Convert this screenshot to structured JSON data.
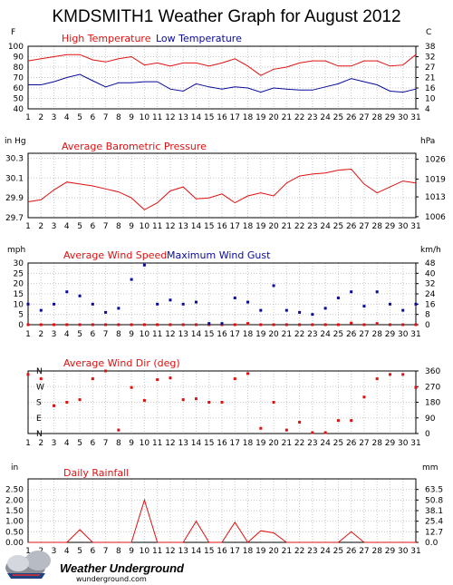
{
  "title": "KMDSMITH1 Weather Graph for August 2012",
  "logo": {
    "name": "Weather Underground",
    "url": "wunderground.com"
  },
  "colors": {
    "red": "#e01010",
    "blue": "#0a0a9a",
    "grid": "#c8c8c8"
  },
  "chart_data": [
    {
      "type": "line",
      "title": "",
      "legend": [
        "High Temperature",
        "Low Temperature"
      ],
      "left_unit": "F",
      "right_unit": "C",
      "ylim": [
        40,
        100
      ],
      "yticks": [
        40,
        50,
        60,
        70,
        80,
        90,
        100
      ],
      "right_ticks": [
        "4",
        "10",
        "16",
        "21",
        "27",
        "32",
        "38"
      ],
      "x": [
        1,
        2,
        3,
        4,
        5,
        6,
        7,
        8,
        9,
        10,
        11,
        12,
        13,
        14,
        15,
        16,
        17,
        18,
        19,
        20,
        21,
        22,
        23,
        24,
        25,
        26,
        27,
        28,
        29,
        30,
        31
      ],
      "series": [
        {
          "name": "High Temperature",
          "color": "red",
          "values": [
            86,
            88,
            90,
            92,
            92,
            87,
            85,
            88,
            90,
            82,
            84,
            81,
            84,
            84,
            81,
            84,
            88,
            81,
            72,
            78,
            80,
            84,
            86,
            86,
            81,
            81,
            86,
            86,
            81,
            82,
            92
          ]
        },
        {
          "name": "Low Temperature",
          "color": "blue",
          "values": [
            63,
            63,
            66,
            70,
            73,
            67,
            61,
            65,
            65,
            66,
            66,
            59,
            57,
            64,
            61,
            59,
            61,
            60,
            56,
            60,
            59,
            58,
            58,
            61,
            64,
            69,
            66,
            63,
            57,
            56,
            59
          ]
        }
      ]
    },
    {
      "type": "line",
      "title": "Average Barometric Pressure",
      "legend": [],
      "left_unit": "in Hg",
      "right_unit": "hPa",
      "ylim": [
        29.7,
        30.35
      ],
      "yticks": [
        29.7,
        29.9,
        30.1,
        30.3
      ],
      "yticklabels": [
        "29.7",
        "29.9",
        "30.1",
        "30.3"
      ],
      "right_ticks": [
        [
          "1006",
          29.71
        ],
        [
          "1013",
          29.91
        ],
        [
          "1019",
          30.09
        ],
        [
          "1026",
          30.29
        ]
      ],
      "x": [
        1,
        2,
        3,
        4,
        5,
        6,
        7,
        8,
        9,
        10,
        11,
        12,
        13,
        14,
        15,
        16,
        17,
        18,
        19,
        20,
        21,
        22,
        23,
        24,
        25,
        26,
        27,
        28,
        29,
        30,
        31
      ],
      "series": [
        {
          "name": "Average Barometric Pressure",
          "color": "red",
          "values": [
            29.86,
            29.88,
            29.98,
            30.06,
            30.04,
            30.02,
            29.99,
            29.96,
            29.9,
            29.78,
            29.85,
            29.97,
            30.01,
            29.89,
            29.9,
            29.94,
            29.85,
            29.92,
            29.95,
            29.92,
            30.05,
            30.12,
            30.14,
            30.15,
            30.18,
            30.19,
            30.04,
            29.95,
            30.01,
            30.07,
            30.05
          ]
        }
      ]
    },
    {
      "type": "scatter",
      "title": "",
      "legend": [
        "Average Wind Speed",
        "Maximum Wind Gust"
      ],
      "left_unit": "mph",
      "right_unit": "km/h",
      "ylim": [
        0,
        30
      ],
      "yticks": [
        0,
        5,
        10,
        15,
        20,
        25,
        30
      ],
      "right_ticks": [
        [
          "0",
          0
        ],
        [
          "8",
          5
        ],
        [
          "16",
          10
        ],
        [
          "24",
          15
        ],
        [
          "32",
          20
        ],
        [
          "40",
          25
        ],
        [
          "48",
          30
        ]
      ],
      "x": [
        1,
        2,
        3,
        4,
        5,
        6,
        7,
        8,
        9,
        10,
        11,
        12,
        13,
        14,
        15,
        16,
        17,
        18,
        19,
        20,
        21,
        22,
        23,
        24,
        25,
        26,
        27,
        28,
        29,
        30,
        31
      ],
      "series": [
        {
          "name": "Average Wind Speed",
          "color": "red",
          "values": [
            0,
            0,
            0,
            0,
            0,
            0,
            0,
            0,
            0,
            0,
            0,
            0,
            0,
            0,
            0,
            0,
            0,
            0.6,
            0,
            0,
            0,
            0,
            0,
            0,
            0,
            0.8,
            0,
            0.6,
            0,
            0,
            0
          ]
        },
        {
          "name": "Maximum Wind Gust",
          "color": "blue",
          "values": [
            10,
            7,
            10,
            16,
            14,
            10,
            6,
            8,
            22,
            29,
            10,
            12,
            10,
            11,
            0.6,
            0.6,
            13,
            11,
            7,
            19,
            7,
            6,
            5,
            8,
            13,
            16,
            9,
            16,
            10,
            7,
            10
          ]
        }
      ]
    },
    {
      "type": "scatter",
      "title": "Average Wind Dir (deg)",
      "legend": [],
      "left_unit": "",
      "right_unit": "",
      "ylim": [
        0,
        360
      ],
      "compass": [
        "N",
        "W",
        "S",
        "E",
        "N"
      ],
      "right_ticks": [
        [
          "0",
          0
        ],
        [
          "90",
          90
        ],
        [
          "180",
          180
        ],
        [
          "270",
          270
        ],
        [
          "360",
          360
        ]
      ],
      "x": [
        1,
        2,
        3,
        4,
        5,
        6,
        7,
        8,
        9,
        10,
        11,
        12,
        13,
        14,
        15,
        16,
        17,
        18,
        19,
        20,
        21,
        22,
        23,
        24,
        25,
        26,
        27,
        28,
        29,
        30,
        31
      ],
      "series": [
        {
          "name": "Average Wind Dir (deg)",
          "color": "red",
          "values": [
            340,
            315,
            160,
            180,
            195,
            315,
            360,
            20,
            265,
            190,
            310,
            320,
            195,
            200,
            180,
            180,
            315,
            345,
            30,
            180,
            20,
            65,
            5,
            5,
            75,
            75,
            210,
            315,
            340,
            340,
            265
          ]
        }
      ]
    },
    {
      "type": "line",
      "title": "Daily Rainfall",
      "legend": [],
      "left_unit": "in",
      "right_unit": "mm",
      "ylim": [
        0,
        3.0
      ],
      "yticks": [
        0,
        0.5,
        1,
        1.5,
        2,
        2.5
      ],
      "yticklabels": [
        "0.00",
        "0.50",
        "1.00",
        "1.50",
        "2.00",
        "2.50"
      ],
      "right_ticks": [
        [
          "0.0",
          0
        ],
        [
          "12.7",
          0.5
        ],
        [
          "25.4",
          1
        ],
        [
          "38.1",
          1.5
        ],
        [
          "50.8",
          2
        ],
        [
          "63.5",
          2.5
        ]
      ],
      "x": [
        1,
        2,
        3,
        4,
        5,
        6,
        7,
        8,
        9,
        10,
        11,
        12,
        13,
        14,
        15,
        16,
        17,
        18,
        19,
        20,
        21,
        22,
        23,
        24,
        25,
        26,
        27,
        28,
        29,
        30,
        31
      ],
      "series": [
        {
          "name": "Daily Rainfall",
          "color": "red",
          "values": [
            0,
            0,
            0,
            0,
            0.6,
            0,
            0,
            0,
            0,
            2.0,
            0,
            0,
            0,
            1.0,
            0,
            0,
            0.95,
            0,
            0.55,
            0.45,
            0,
            0,
            0,
            0,
            0,
            0.5,
            0,
            0,
            0,
            0,
            0
          ]
        }
      ]
    }
  ]
}
